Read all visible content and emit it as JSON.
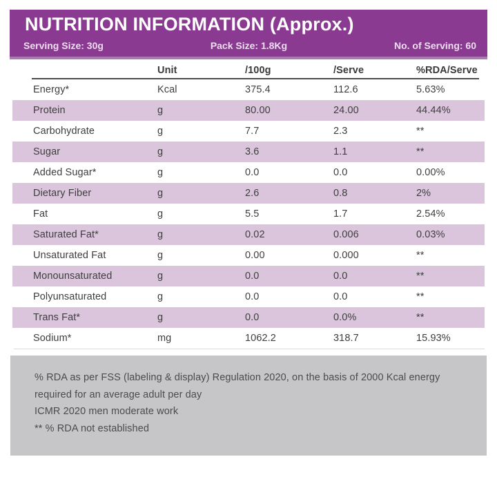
{
  "header": {
    "title": "NUTRITION INFORMATION (Approx.)",
    "serving_size": "Serving Size: 30g",
    "pack_size": "Pack Size: 1.8Kg",
    "no_of_serving": "No. of Serving: 60"
  },
  "table": {
    "columns": [
      "",
      "Unit",
      "/100g",
      "/Serve",
      "%RDA/Serve"
    ],
    "rows": [
      {
        "nutrient": "Energy*",
        "unit": "Kcal",
        "per100g": "375.4",
        "perServe": "112.6",
        "rda": "5.63%"
      },
      {
        "nutrient": "Protein",
        "unit": "g",
        "per100g": "80.00",
        "perServe": "24.00",
        "rda": "44.44%"
      },
      {
        "nutrient": "Carbohydrate",
        "unit": "g",
        "per100g": "7.7",
        "perServe": "2.3",
        "rda": "**"
      },
      {
        "nutrient": "Sugar",
        "unit": "g",
        "per100g": "3.6",
        "perServe": "1.1",
        "rda": "**"
      },
      {
        "nutrient": "Added Sugar*",
        "unit": "g",
        "per100g": "0.0",
        "perServe": "0.0",
        "rda": "0.00%"
      },
      {
        "nutrient": "Dietary Fiber",
        "unit": "g",
        "per100g": "2.6",
        "perServe": "0.8",
        "rda": "2%"
      },
      {
        "nutrient": "Fat",
        "unit": "g",
        "per100g": "5.5",
        "perServe": "1.7",
        "rda": "2.54%"
      },
      {
        "nutrient": "Saturated Fat*",
        "unit": "g",
        "per100g": "0.02",
        "perServe": "0.006",
        "rda": "0.03%"
      },
      {
        "nutrient": "Unsaturated Fat",
        "unit": "g",
        "per100g": "0.00",
        "perServe": "0.000",
        "rda": "**"
      },
      {
        "nutrient": "Monounsaturated",
        "unit": "g",
        "per100g": "0.0",
        "perServe": "0.0",
        "rda": "**"
      },
      {
        "nutrient": "Polyunsaturated",
        "unit": "g",
        "per100g": "0.0",
        "perServe": "0.0",
        "rda": "**"
      },
      {
        "nutrient": "Trans Fat*",
        "unit": "g",
        "per100g": "0.0",
        "perServe": "0.0%",
        "rda": "**"
      },
      {
        "nutrient": "Sodium*",
        "unit": "mg",
        "per100g": "1062.2",
        "perServe": "318.7",
        "rda": "15.93%"
      }
    ]
  },
  "footnotes": {
    "lines": [
      "% RDA as per FSS (labeling & display) Regulation 2020, on the basis of 2000 Kcal energy",
      "required for an average adult per day",
      "ICMR 2020 men moderate work",
      "** % RDA not established"
    ]
  },
  "colors": {
    "header_purple": "#8b3a92",
    "header_purple_light_edge": "#aa79af",
    "row_shade": "#dbc5dd",
    "footer_grey": "#c6c5c8",
    "text_dark": "#3e3e3e"
  }
}
